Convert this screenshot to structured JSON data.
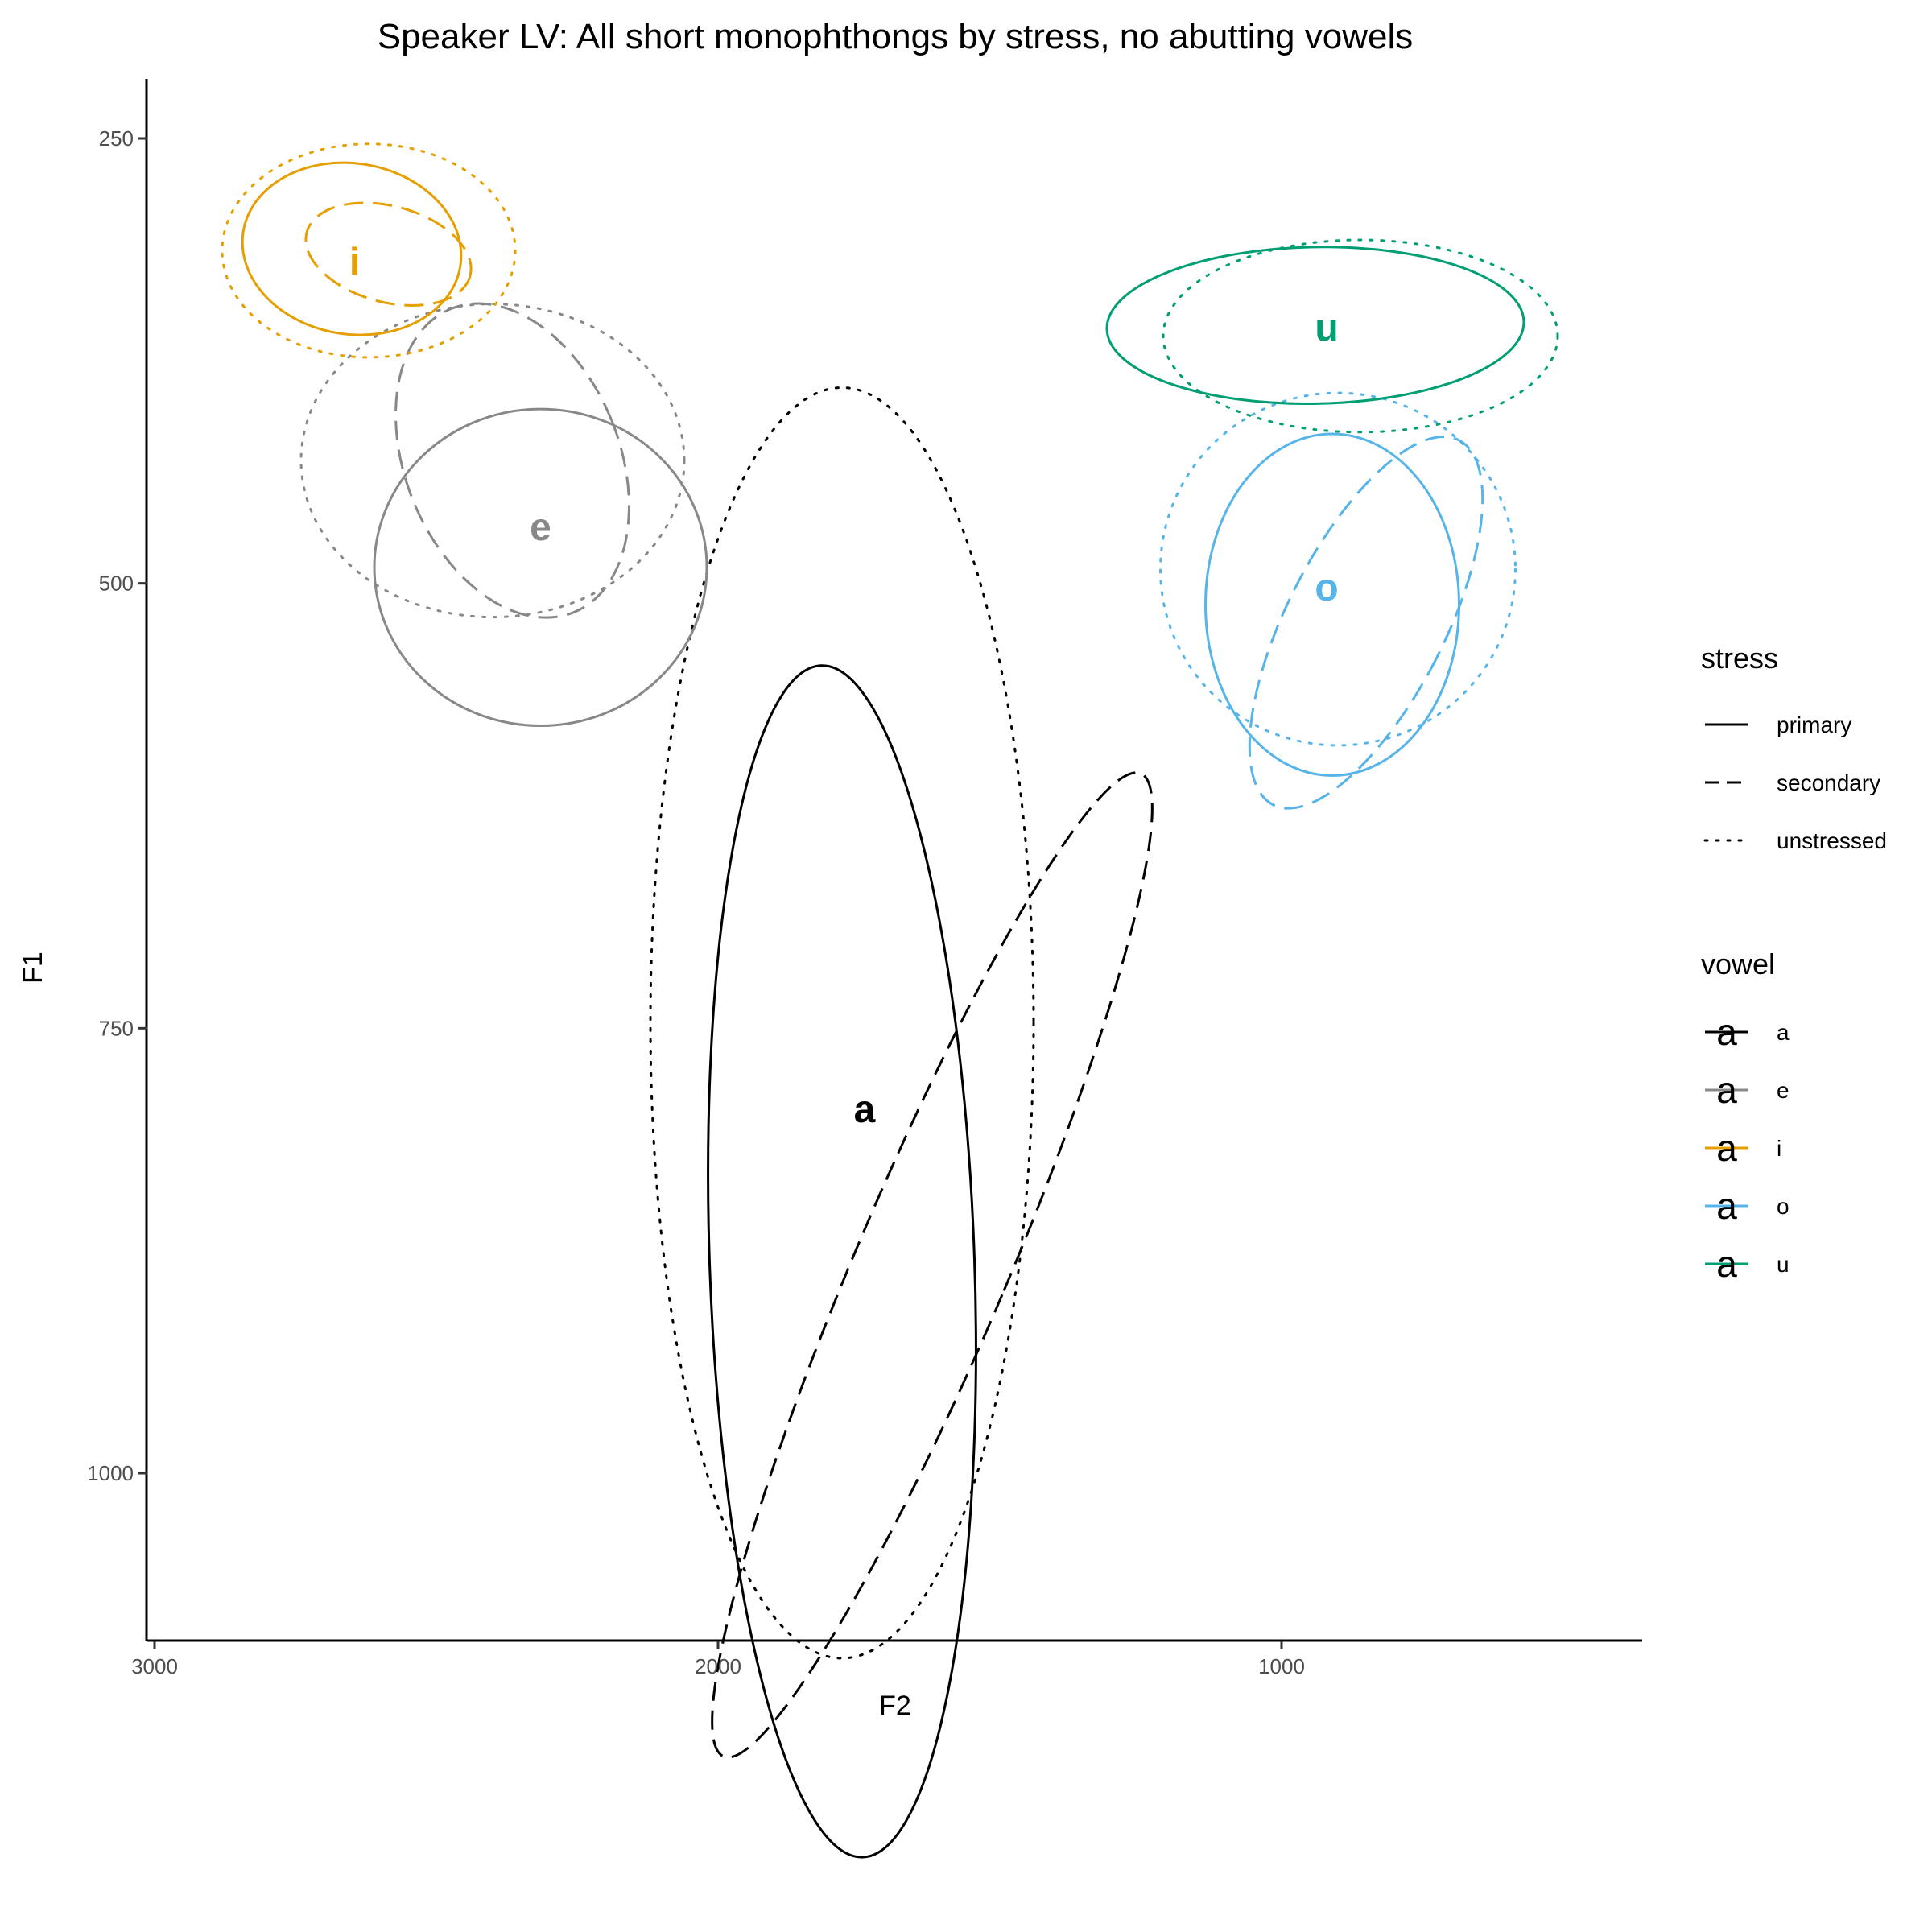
{
  "chart_data": {
    "type": "scatter",
    "subtype": "confidence-ellipses",
    "title": "Speaker LV: All short monophthongs by stress, no abutting vowels",
    "xlabel": "F2",
    "ylabel": "F1",
    "x_reversed": true,
    "y_reversed": true,
    "xlim": [
      3000,
      640
    ],
    "ylim": [
      200,
      1160
    ],
    "x_ticks": [
      3000,
      2000,
      1000
    ],
    "y_ticks": [
      250,
      500,
      750,
      1000
    ],
    "grid": false,
    "legend_position": "right",
    "legend": {
      "stress": {
        "title": "stress",
        "entries": [
          {
            "key": "primary",
            "label": "primary",
            "dash": "solid"
          },
          {
            "key": "secondary",
            "label": "secondary",
            "dash": "dashed"
          },
          {
            "key": "unstressed",
            "label": "unstressed",
            "dash": "dotted"
          }
        ]
      },
      "vowel": {
        "title": "vowel",
        "glyph": "a",
        "entries": [
          {
            "label": "a",
            "color": "#000000"
          },
          {
            "label": "e",
            "color": "#888888"
          },
          {
            "label": "i",
            "color": "#E69F00"
          },
          {
            "label": "o",
            "color": "#56B4E9"
          },
          {
            "label": "u",
            "color": "#009E73"
          }
        ]
      }
    },
    "labels": [
      {
        "vowel": "a",
        "f2": 1740,
        "f1": 795
      },
      {
        "vowel": "e",
        "f2": 2315,
        "f1": 468
      },
      {
        "vowel": "i",
        "f2": 2645,
        "f1": 319
      },
      {
        "vowel": "o",
        "f2": 920,
        "f1": 502
      },
      {
        "vowel": "u",
        "f2": 920,
        "f1": 356
      }
    ],
    "ellipses": [
      {
        "vowel": "a",
        "stress": "primary",
        "f2": 1780,
        "f1": 881,
        "rx_f2": 235,
        "ry_f1": 335,
        "angle": -2
      },
      {
        "vowel": "a",
        "stress": "secondary",
        "f2": 1620,
        "f1": 883,
        "rx_f2": 135,
        "ry_f1": 300,
        "angle": 23
      },
      {
        "vowel": "a",
        "stress": "unstressed",
        "f2": 1780,
        "f1": 747,
        "rx_f2": 340,
        "ry_f1": 357,
        "angle": 0
      },
      {
        "vowel": "e",
        "stress": "primary",
        "f2": 2315,
        "f1": 491,
        "rx_f2": 295,
        "ry_f1": 89,
        "angle": 0
      },
      {
        "vowel": "e",
        "stress": "secondary",
        "f2": 2365,
        "f1": 431,
        "rx_f2": 190,
        "ry_f1": 92,
        "angle": -22
      },
      {
        "vowel": "e",
        "stress": "unstressed",
        "f2": 2400,
        "f1": 431,
        "rx_f2": 340,
        "ry_f1": 88,
        "angle": 0
      },
      {
        "vowel": "i",
        "stress": "primary",
        "f2": 2650,
        "f1": 312,
        "rx_f2": 195,
        "ry_f1": 48,
        "angle": 9
      },
      {
        "vowel": "i",
        "stress": "secondary",
        "f2": 2585,
        "f1": 315,
        "rx_f2": 150,
        "ry_f1": 27,
        "angle": 15
      },
      {
        "vowel": "i",
        "stress": "unstressed",
        "f2": 2620,
        "f1": 313,
        "rx_f2": 260,
        "ry_f1": 60,
        "angle": 0
      },
      {
        "vowel": "o",
        "stress": "primary",
        "f2": 910,
        "f1": 512,
        "rx_f2": 225,
        "ry_f1": 96,
        "angle": 0
      },
      {
        "vowel": "o",
        "stress": "secondary",
        "f2": 850,
        "f1": 522,
        "rx_f2": 140,
        "ry_f1": 115,
        "angle": 27
      },
      {
        "vowel": "o",
        "stress": "unstressed",
        "f2": 900,
        "f1": 492,
        "rx_f2": 315,
        "ry_f1": 99,
        "angle": 0
      },
      {
        "vowel": "u",
        "stress": "primary",
        "f2": 940,
        "f1": 355,
        "rx_f2": 370,
        "ry_f1": 44,
        "angle": -1
      },
      {
        "vowel": "u",
        "stress": "unstressed",
        "f2": 860,
        "f1": 361,
        "rx_f2": 350,
        "ry_f1": 54,
        "angle": 0
      }
    ]
  }
}
